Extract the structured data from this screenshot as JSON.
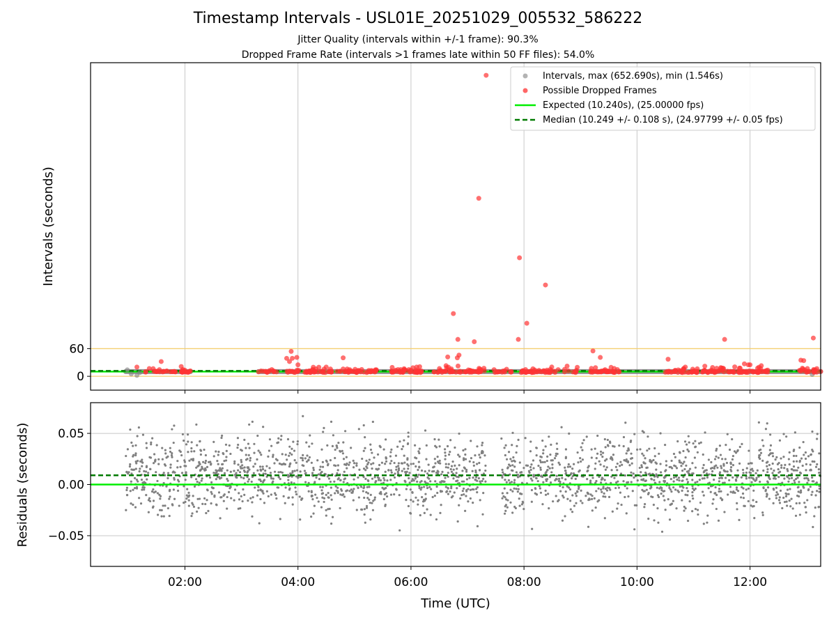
{
  "figure": {
    "title": "Timestamp Intervals - USL01E_20251029_005532_586222",
    "subtitle_1": "Jitter Quality (intervals within +/-1 frame): 90.3%",
    "subtitle_2": "Dropped Frame Rate (intervals >1 frames late within 50 FF files): 54.0%"
  },
  "colors": {
    "intervals": "#808080",
    "dropped": "#ff3333",
    "expected": "#00ee00",
    "median": "#007a00",
    "threshold": "#f5cf70",
    "grid": "#c8c8c8"
  },
  "chart_data": [
    {
      "type": "scatter",
      "xlabel": "",
      "ylabel": "Intervals (seconds)",
      "x_unit": "hours UTC",
      "xlim": [
        0.33,
        13.25
      ],
      "ylim": [
        -30,
        680
      ],
      "yticks": [
        0,
        60
      ],
      "ytick_labels": [
        "0",
        "60"
      ],
      "grid": "x",
      "threshold_lines": [
        60,
        0
      ],
      "legend_position": "top-right",
      "legend": [
        {
          "label": "Intervals, max (652.690s), min (1.546s)",
          "kind": "marker",
          "color": "#808080"
        },
        {
          "label": "Possible Dropped Frames",
          "kind": "marker",
          "color": "#ff3333"
        },
        {
          "label": "Expected (10.240s), (25.00000 fps)",
          "kind": "line",
          "color": "#00ee00"
        },
        {
          "label": "Median (10.249 +/- 0.108 s), (24.97799 +/- 0.05 fps)",
          "kind": "dashed",
          "color": "#007a00"
        }
      ],
      "expected_value": 10.24,
      "median_value": 10.249,
      "interval_band": {
        "value": 10.25,
        "segments": [
          [
            0.95,
            2.1
          ],
          [
            3.3,
            13.25
          ]
        ]
      },
      "dropped_clusters": [
        [
          1.3,
          2.1,
          40
        ],
        [
          3.3,
          3.7,
          14
        ],
        [
          3.8,
          5.4,
          90
        ],
        [
          5.65,
          6.2,
          40
        ],
        [
          6.4,
          7.3,
          55
        ],
        [
          7.45,
          7.8,
          14
        ],
        [
          7.95,
          8.65,
          40
        ],
        [
          8.7,
          8.95,
          10
        ],
        [
          9.15,
          9.7,
          35
        ],
        [
          10.5,
          11.1,
          35
        ],
        [
          11.15,
          12.35,
          75
        ],
        [
          12.85,
          13.25,
          22
        ]
      ],
      "dropped_outliers": [
        [
          7.33,
          652.69
        ],
        [
          7.2,
          386
        ],
        [
          7.92,
          257
        ],
        [
          8.38,
          198
        ],
        [
          6.75,
          136
        ],
        [
          8.05,
          115
        ],
        [
          6.83,
          80
        ],
        [
          7.9,
          80
        ],
        [
          7.12,
          75
        ],
        [
          11.55,
          80
        ],
        [
          13.12,
          83
        ],
        [
          9.22,
          55
        ],
        [
          9.35,
          41
        ],
        [
          6.85,
          46
        ],
        [
          6.82,
          40
        ],
        [
          3.88,
          54
        ],
        [
          3.8,
          39
        ],
        [
          3.9,
          39
        ],
        [
          3.85,
          32
        ],
        [
          3.98,
          41
        ],
        [
          4.0,
          25
        ],
        [
          4.8,
          40
        ],
        [
          6.65,
          42
        ],
        [
          6.62,
          23
        ],
        [
          10.55,
          37
        ],
        [
          12.9,
          35
        ],
        [
          12.95,
          34
        ],
        [
          1.58,
          32
        ],
        [
          1.15,
          20
        ],
        [
          4.5,
          20
        ],
        [
          12.0,
          25
        ],
        [
          11.97,
          25
        ],
        [
          11.9,
          27
        ],
        [
          11.2,
          22
        ],
        [
          12.2,
          23
        ],
        [
          6.1,
          20
        ]
      ],
      "gray_outliers": [
        [
          0.98,
          14
        ],
        [
          1.15,
          2
        ],
        [
          1.05,
          5
        ],
        [
          1.2,
          8
        ],
        [
          13.1,
          4
        ]
      ]
    },
    {
      "type": "scatter",
      "xlabel": "Time (UTC)",
      "ylabel": "Residuals (seconds)",
      "x_unit": "hours UTC",
      "xlim": [
        0.33,
        13.25
      ],
      "ylim": [
        -0.08,
        0.08
      ],
      "xticks": [
        2,
        4,
        6,
        8,
        10,
        12
      ],
      "xtick_labels": [
        "02:00",
        "04:00",
        "06:00",
        "08:00",
        "10:00",
        "12:00"
      ],
      "yticks": [
        0.05,
        0.0,
        -0.05
      ],
      "ytick_labels": [
        "0.05",
        "0.00",
        "−0.05"
      ],
      "grid": "both",
      "expected_line": 0.0,
      "median_line": 0.009,
      "point_segments": [
        [
          0.95,
          7.35
        ],
        [
          7.6,
          13.25
        ]
      ],
      "point_count": 2200,
      "spread": {
        "center": 0.009,
        "sd": 0.019,
        "min": -0.065,
        "max": 0.07
      }
    }
  ]
}
